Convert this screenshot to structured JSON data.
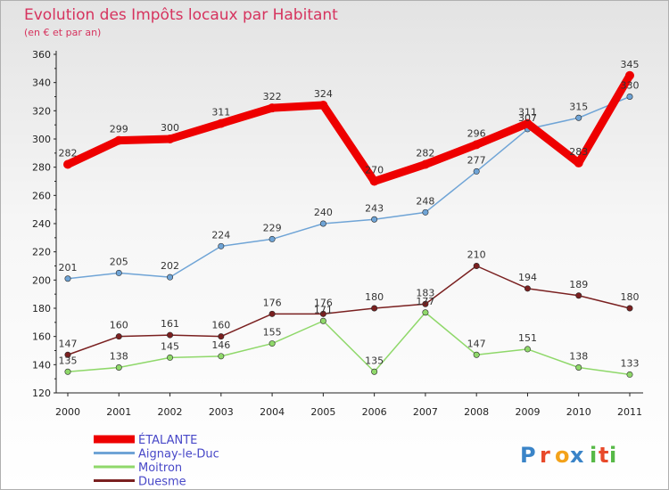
{
  "chart_data": {
    "type": "line",
    "title": "Evolution des Impôts locaux par Habitant",
    "subtitle": "(en € et par an)",
    "x": [
      "2000",
      "2001",
      "2002",
      "2003",
      "2004",
      "2005",
      "2006",
      "2007",
      "2008",
      "2009",
      "2010",
      "2011"
    ],
    "ylim": [
      120,
      360
    ],
    "yticks": [
      120,
      140,
      160,
      180,
      200,
      220,
      240,
      260,
      280,
      300,
      320,
      340,
      360
    ],
    "grid": false,
    "legend_position": "bottom-left",
    "series": [
      {
        "name": "ÉTALANTE",
        "color": "#ee0000",
        "values": [
          282,
          299,
          300,
          311,
          322,
          324,
          270,
          282,
          296,
          311,
          283,
          345
        ]
      },
      {
        "name": "Aignay-le-Duc",
        "color": "#6fa4d6",
        "values": [
          201,
          205,
          202,
          224,
          229,
          240,
          243,
          248,
          277,
          307,
          315,
          330
        ]
      },
      {
        "name": "Moitron",
        "color": "#8fd86a",
        "values": [
          135,
          138,
          145,
          146,
          155,
          171,
          135,
          177,
          147,
          151,
          138,
          133
        ]
      },
      {
        "name": "Duesme",
        "color": "#7a2020",
        "values": [
          147,
          160,
          161,
          160,
          176,
          176,
          180,
          183,
          210,
          194,
          189,
          180
        ]
      }
    ]
  },
  "logo": {
    "text": "Proxiti",
    "letters": [
      "P",
      "r",
      "o",
      "x",
      "i",
      "t",
      "i"
    ],
    "colors": [
      "#3a84c8",
      "#e8492a",
      "#f3a21a",
      "#3a84c8",
      "#57b947",
      "#e8492a",
      "#57b947"
    ]
  }
}
